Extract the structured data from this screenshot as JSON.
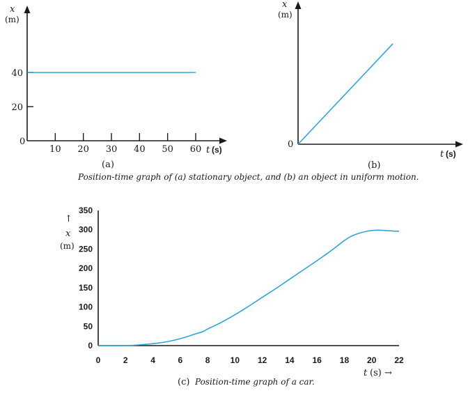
{
  "chart_data": [
    {
      "id": "a",
      "type": "line",
      "panel_label": "(a)",
      "y_var": "x",
      "y_unit": "(m)",
      "x_var": "t",
      "x_unit": "(s)",
      "x_ticks": [
        10,
        20,
        30,
        40,
        50,
        60
      ],
      "y_ticks": [
        20,
        40
      ],
      "origin_label": "0",
      "xlim": [
        0,
        70
      ],
      "ylim": [
        0,
        80
      ],
      "series": [
        {
          "x": [
            0,
            60
          ],
          "y": [
            40,
            40
          ]
        }
      ]
    },
    {
      "id": "b",
      "type": "line",
      "panel_label": "(b)",
      "y_var": "x",
      "y_unit": "(m)",
      "x_var": "t",
      "x_unit": "(s)",
      "origin_label": "0",
      "xlim": [
        0,
        1
      ],
      "ylim": [
        0,
        1
      ],
      "series": [
        {
          "x": [
            0,
            0.6
          ],
          "y": [
            0,
            0.74
          ]
        }
      ]
    },
    {
      "id": "c",
      "type": "line",
      "y_arrow": "↑",
      "y_var": "x",
      "y_unit": "(m)",
      "x_var": "t",
      "x_unit": "(s) →",
      "x_ticks": [
        0,
        2,
        4,
        6,
        8,
        10,
        12,
        14,
        16,
        18,
        20,
        22
      ],
      "y_ticks": [
        0,
        50,
        100,
        150,
        200,
        250,
        300,
        350
      ],
      "xlim": [
        0,
        22
      ],
      "ylim": [
        0,
        350
      ],
      "series": [
        {
          "x": [
            0,
            1,
            2,
            3,
            4,
            5,
            6,
            7,
            7.7,
            8,
            9,
            10,
            11,
            12,
            13,
            14,
            15,
            16,
            17,
            18,
            18.5,
            19,
            19.5,
            20,
            20.5,
            21,
            21.5,
            22
          ],
          "y": [
            0,
            0,
            0,
            2,
            5,
            10,
            18,
            29,
            37,
            43,
            60,
            80,
            102,
            125,
            148,
            172,
            196,
            220,
            245,
            272,
            283,
            290,
            295,
            298,
            299,
            298,
            297,
            296
          ]
        }
      ]
    }
  ],
  "captions": {
    "ab": "Position-time graph of (a) stationary object, and (b) an object in uniform motion.",
    "c_label": "(c)",
    "c_text": "Position-time graph of a car."
  },
  "colors": {
    "series": "#2aa6dc",
    "axis": "#1a1a1a"
  }
}
